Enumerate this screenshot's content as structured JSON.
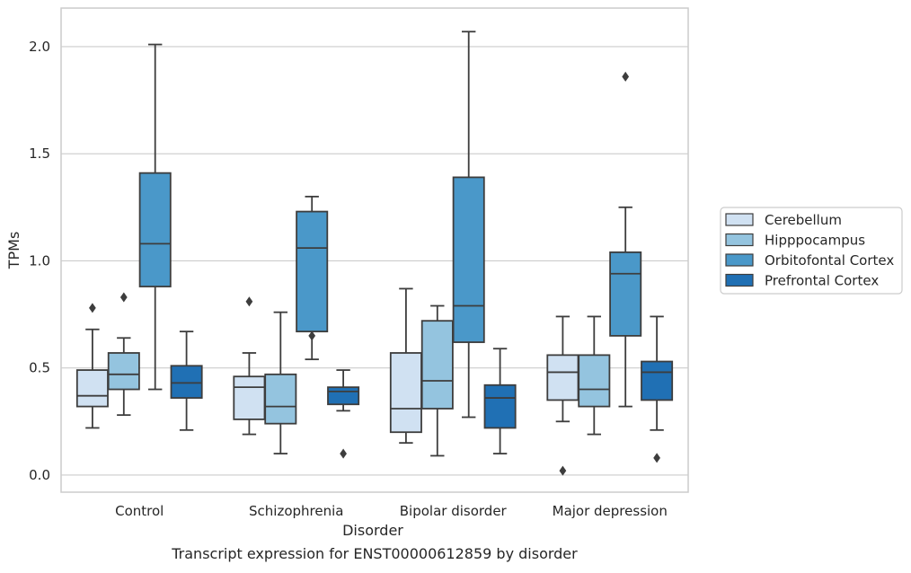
{
  "chart_data": {
    "type": "boxplot",
    "caption": "Transcript expression for ENST00000612859 by disorder",
    "xlabel": "Disorder",
    "ylabel": "TPMs",
    "ylim": [
      -0.08,
      2.18
    ],
    "yticks": [
      0.0,
      0.5,
      1.0,
      1.5,
      2.0
    ],
    "ytick_labels": [
      "0.0",
      "0.5",
      "1.0",
      "1.5",
      "2.0"
    ],
    "grid": true,
    "legend_position": "right, outside plot",
    "categories": [
      "Control",
      "Schizophrenia",
      "Bipolar disorder",
      "Major depression"
    ],
    "series": [
      {
        "name": "Cerebellum",
        "color": "#d0e1f2",
        "boxes": [
          {
            "whisker_low": 0.22,
            "q1": 0.32,
            "median": 0.37,
            "q3": 0.49,
            "whisker_high": 0.68,
            "outliers": [
              0.78
            ]
          },
          {
            "whisker_low": 0.19,
            "q1": 0.26,
            "median": 0.41,
            "q3": 0.46,
            "whisker_high": 0.57,
            "outliers": [
              0.81
            ]
          },
          {
            "whisker_low": 0.15,
            "q1": 0.2,
            "median": 0.31,
            "q3": 0.57,
            "whisker_high": 0.87,
            "outliers": []
          },
          {
            "whisker_low": 0.25,
            "q1": 0.35,
            "median": 0.48,
            "q3": 0.56,
            "whisker_high": 0.74,
            "outliers": [
              0.02
            ]
          }
        ]
      },
      {
        "name": "Hipppocampus",
        "color": "#94c4df",
        "boxes": [
          {
            "whisker_low": 0.28,
            "q1": 0.4,
            "median": 0.47,
            "q3": 0.57,
            "whisker_high": 0.64,
            "outliers": [
              0.83
            ]
          },
          {
            "whisker_low": 0.1,
            "q1": 0.24,
            "median": 0.32,
            "q3": 0.47,
            "whisker_high": 0.76,
            "outliers": []
          },
          {
            "whisker_low": 0.09,
            "q1": 0.31,
            "median": 0.44,
            "q3": 0.72,
            "whisker_high": 0.79,
            "outliers": []
          },
          {
            "whisker_low": 0.19,
            "q1": 0.32,
            "median": 0.4,
            "q3": 0.56,
            "whisker_high": 0.74,
            "outliers": []
          }
        ]
      },
      {
        "name": "Orbitofontal Cortex",
        "color": "#4a98c9",
        "boxes": [
          {
            "whisker_low": 0.4,
            "q1": 0.88,
            "median": 1.08,
            "q3": 1.41,
            "whisker_high": 2.01,
            "outliers": []
          },
          {
            "whisker_low": 0.54,
            "q1": 0.67,
            "median": 1.06,
            "q3": 1.23,
            "whisker_high": 1.3,
            "outliers": [
              0.65
            ]
          },
          {
            "whisker_low": 0.27,
            "q1": 0.62,
            "median": 0.79,
            "q3": 1.39,
            "whisker_high": 2.07,
            "outliers": []
          },
          {
            "whisker_low": 0.32,
            "q1": 0.65,
            "median": 0.94,
            "q3": 1.04,
            "whisker_high": 1.25,
            "outliers": [
              1.86
            ]
          }
        ]
      },
      {
        "name": "Prefrontal Cortex",
        "color": "#2070b4",
        "boxes": [
          {
            "whisker_low": 0.21,
            "q1": 0.36,
            "median": 0.43,
            "q3": 0.51,
            "whisker_high": 0.67,
            "outliers": []
          },
          {
            "whisker_low": 0.3,
            "q1": 0.33,
            "median": 0.39,
            "q3": 0.41,
            "whisker_high": 0.49,
            "outliers": [
              0.1
            ]
          },
          {
            "whisker_low": 0.1,
            "q1": 0.22,
            "median": 0.36,
            "q3": 0.42,
            "whisker_high": 0.59,
            "outliers": []
          },
          {
            "whisker_low": 0.21,
            "q1": 0.35,
            "median": 0.48,
            "q3": 0.53,
            "whisker_high": 0.74,
            "outliers": [
              0.08
            ]
          }
        ]
      }
    ]
  }
}
